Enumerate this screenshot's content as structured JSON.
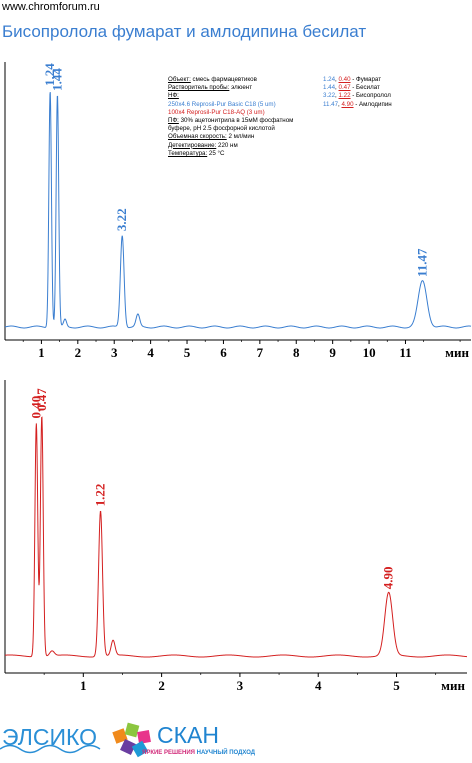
{
  "site": "www.chromforum.ru",
  "title": "Бисопролола фумарат и амлодипина бесилат",
  "info": {
    "object_key": "Объект:",
    "object_val": " смесь фармацевтиков",
    "solvent_key": "Растворитель пробы:",
    "solvent_val": " элюент",
    "sp_key": "НФ:",
    "sp_blue": "250x4.6 Reprosil-Pur Basic C18 (5 um)",
    "sp_red": "100x4 Reprosil-Pur C18-AQ (3 um)",
    "mp_key": "ПФ:",
    "mp_val1": " 30% ацетонитрила в 15мМ фосфатном",
    "mp_val2": "буфере, pH 2.5 фосфорной кислотой",
    "flow_key": "Объемная скорость:",
    "flow_val": " 2 мл/мин",
    "det_key": "Детектирование:",
    "det_val": " 220 нм",
    "temp_key": "Температура:",
    "temp_val": " 25 °C"
  },
  "peaks_legend": [
    {
      "blue": "1.24",
      "sep": ", ",
      "red": "0.40",
      "name": " - Фумарат"
    },
    {
      "blue": "1.44",
      "sep": ", ",
      "red": "0.47",
      "name": " - Бесилат"
    },
    {
      "blue": "3.22",
      "sep": ", ",
      "red": "1.22",
      "name": " - Бисопролол"
    },
    {
      "blue": "11.47",
      "sep": ", ",
      "red": "4.90",
      "name": " - Амлодипин"
    }
  ],
  "colors": {
    "blue": "#3a7ed0",
    "red": "#d42020",
    "axis": "#000000"
  },
  "chart_data": [
    {
      "type": "line",
      "series": [
        {
          "color": "#3a7ed0",
          "peaks": [
            {
              "rt": 1.24,
              "height": 0.98,
              "width": 0.035,
              "label": "1.24"
            },
            {
              "rt": 1.44,
              "height": 0.96,
              "width": 0.035,
              "label": "1.44"
            },
            {
              "rt": 1.65,
              "height": 0.03,
              "width": 0.04
            },
            {
              "rt": 3.22,
              "height": 0.38,
              "width": 0.05,
              "label": "3.22"
            },
            {
              "rt": 3.65,
              "height": 0.05,
              "width": 0.05
            },
            {
              "rt": 11.47,
              "height": 0.19,
              "width": 0.12,
              "label": "11.47"
            }
          ]
        }
      ],
      "xlabel": "мин",
      "xticks": [
        1,
        2,
        3,
        4,
        5,
        6,
        7,
        8,
        9,
        10,
        11
      ],
      "xlim": [
        0,
        12.8
      ],
      "grid": false
    },
    {
      "type": "line",
      "series": [
        {
          "color": "#d42020",
          "peaks": [
            {
              "rt": 0.4,
              "height": 0.93,
              "width": 0.018,
              "label": "0.40"
            },
            {
              "rt": 0.47,
              "height": 0.96,
              "width": 0.018,
              "label": "0.47"
            },
            {
              "rt": 0.6,
              "height": 0.02,
              "width": 0.03
            },
            {
              "rt": 1.22,
              "height": 0.58,
              "width": 0.025,
              "label": "1.22"
            },
            {
              "rt": 1.38,
              "height": 0.06,
              "width": 0.025
            },
            {
              "rt": 4.9,
              "height": 0.25,
              "width": 0.05,
              "label": "4.90"
            }
          ]
        }
      ],
      "xlabel": "мин",
      "xticks": [
        1,
        2,
        3,
        4,
        5
      ],
      "xlim": [
        0,
        5.9
      ],
      "grid": false
    }
  ],
  "logo": {
    "left": "ЭЛСИКО",
    "right": "СКАН",
    "tag1": "ЯРКИЕ РЕШЕНИЯ",
    "tag2": " НАУЧНЫЙ ПОДХОД"
  }
}
